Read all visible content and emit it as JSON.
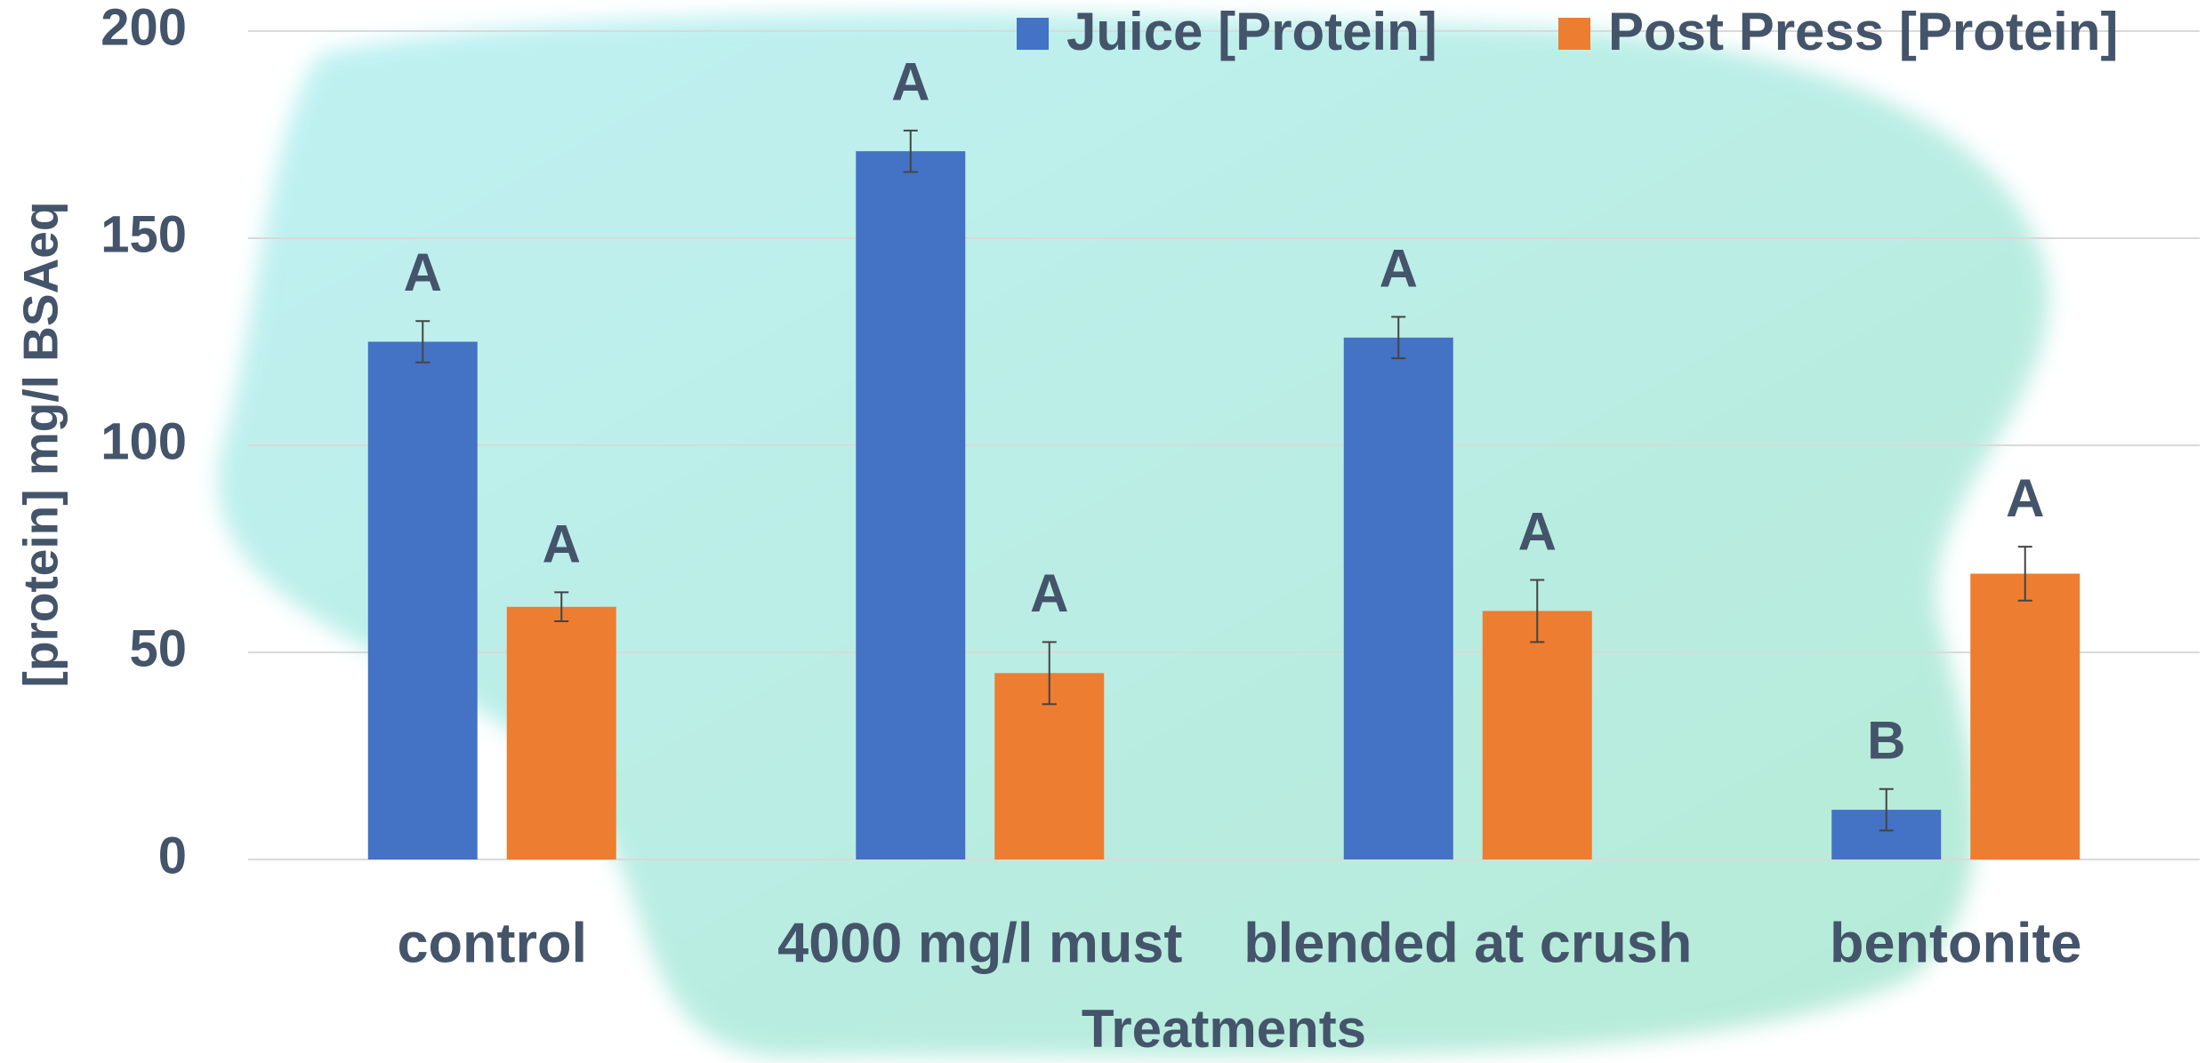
{
  "chart_data": {
    "type": "bar",
    "x_label": "Treatments",
    "y_label": "[protein] mg/l BSAeq",
    "categories": [
      "control",
      "4000 mg/l must",
      "blended at crush",
      "bentonite"
    ],
    "series": [
      {
        "name": "Juice [Protein]",
        "color": "#4472c4",
        "values": [
          125,
          171,
          126,
          12
        ],
        "errors": [
          5,
          5,
          5,
          5
        ],
        "labels": [
          "A",
          "A",
          "A",
          "B"
        ]
      },
      {
        "name": "Post Press [Protein]",
        "color": "#ed7d31",
        "values": [
          61,
          45,
          60,
          69
        ],
        "errors": [
          3.5,
          7.5,
          7.5,
          6.5
        ],
        "labels": [
          "A",
          "A",
          "A",
          "A"
        ]
      }
    ],
    "ylim": [
      0,
      200
    ],
    "yticks": [
      0,
      50,
      100,
      150,
      200
    ],
    "grid": true,
    "legend": "top-right"
  }
}
